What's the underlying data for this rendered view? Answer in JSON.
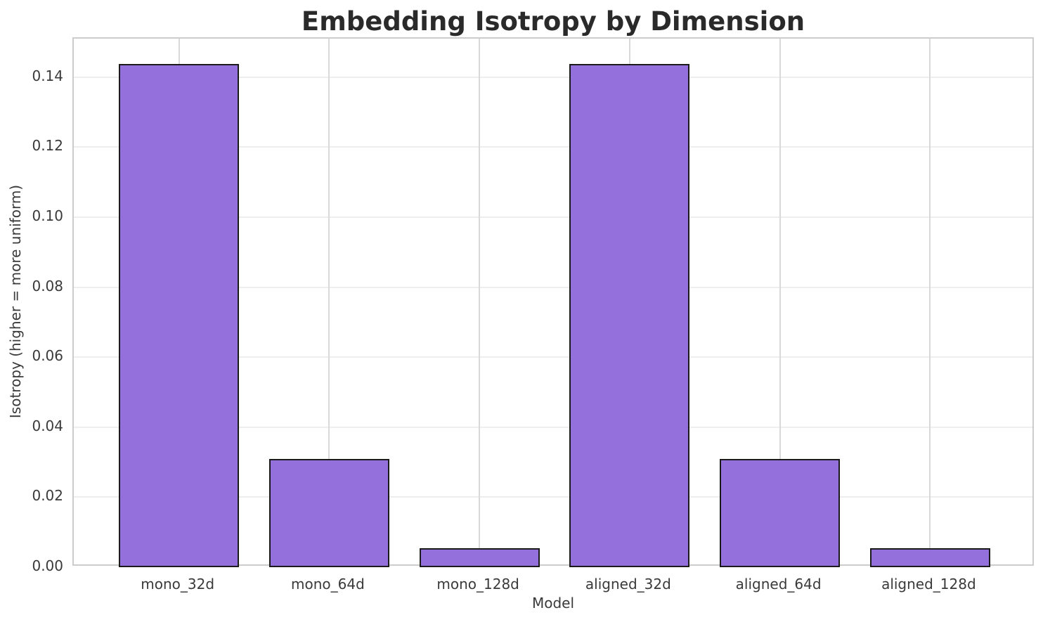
{
  "chart_data": {
    "type": "bar",
    "title": "Embedding Isotropy by Dimension",
    "xlabel": "Model",
    "ylabel": "Isotropy (higher = more uniform)",
    "categories": [
      "mono_32d",
      "mono_64d",
      "mono_128d",
      "aligned_32d",
      "aligned_64d",
      "aligned_128d"
    ],
    "values": [
      0.1437,
      0.0309,
      0.0055,
      0.1437,
      0.0309,
      0.0055
    ],
    "ylim": [
      0,
      0.151
    ],
    "yticks": [
      0.0,
      0.02,
      0.04,
      0.06,
      0.08,
      0.1,
      0.12,
      0.14
    ],
    "ytick_labels": [
      "0.00",
      "0.02",
      "0.04",
      "0.06",
      "0.08",
      "0.10",
      "0.12",
      "0.14"
    ],
    "grid": "both",
    "legend_position": "none",
    "bar_width_fraction": 0.8,
    "colors": {
      "bar_fill": "#9370DB",
      "bar_edge": "#1a1a1a",
      "grid_horizontal": "#eeeeee",
      "grid_vertical": "#d9d9d9",
      "spine": "#cccccc",
      "tick_text": "#3a3a3a",
      "title_text": "#2a2a2a",
      "background": "#ffffff"
    }
  }
}
